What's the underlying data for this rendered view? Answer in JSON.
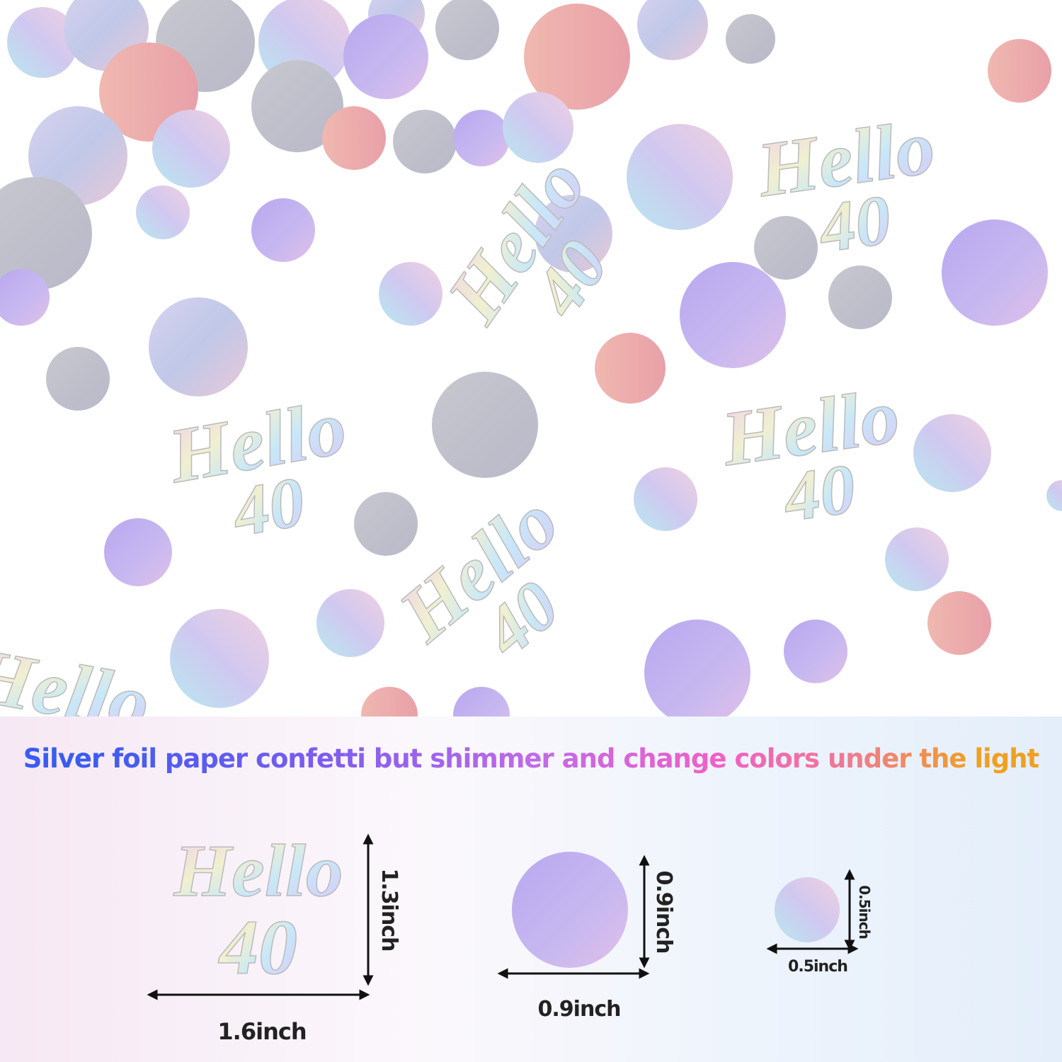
{
  "headline": "Silver foil paper confetti but shimmer and change colors under the light",
  "confetti_word": {
    "line1": "Hello",
    "line2": "40"
  },
  "sizes": {
    "word": {
      "height": "1.3inch",
      "width": "1.6inch"
    },
    "large_circle": {
      "height": "0.9inch",
      "width": "0.9inch"
    },
    "small_circle": {
      "height": "0.5inch",
      "width": "0.5inch"
    }
  }
}
